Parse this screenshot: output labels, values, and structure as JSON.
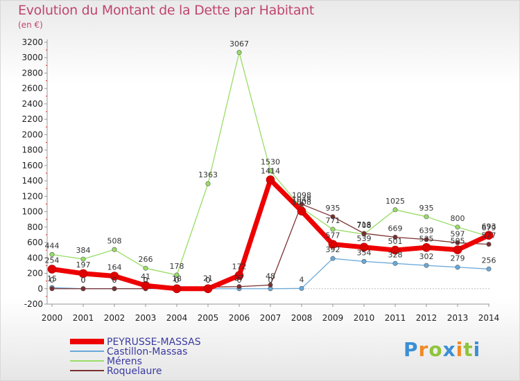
{
  "chart_data": {
    "type": "line",
    "title": "Evolution du Montant de la Dette par Habitant",
    "subtitle": "(en €)",
    "xlabel": "",
    "ylabel": "",
    "x": [
      "2000",
      "2001",
      "2002",
      "2003",
      "2004",
      "2005",
      "2006",
      "2007",
      "2008",
      "2009",
      "2010",
      "2011",
      "2012",
      "2013",
      "2014"
    ],
    "ylim": [
      -200,
      3200
    ],
    "yticks": [
      -200,
      0,
      200,
      400,
      600,
      800,
      1000,
      1200,
      1400,
      1600,
      1800,
      2000,
      2200,
      2400,
      2600,
      2800,
      3000,
      3200
    ],
    "grid": false,
    "legend": "bottom-left",
    "series": [
      {
        "name": "PEYRUSSE-MASSAS",
        "color": "#ee0000",
        "width": 7,
        "values": [
          254,
          197,
          164,
          41,
          0,
          0,
          172,
          1414,
          1008,
          577,
          539,
          501,
          535,
          505,
          693
        ],
        "labels": [
          "254",
          "197",
          "164",
          "41",
          "0",
          "0",
          "172",
          "1414",
          "1008",
          "577",
          "539",
          "501",
          "535",
          "505",
          "693"
        ]
      },
      {
        "name": "Castillon-Massas",
        "color": "#6aa9d9",
        "width": 1.3,
        "values": [
          15,
          0,
          0,
          0,
          0,
          0,
          0,
          0,
          4,
          392,
          354,
          328,
          302,
          279,
          256
        ],
        "labels": [
          "15",
          "0",
          "0",
          "0",
          "0",
          "0",
          "0",
          "0",
          "4",
          "392",
          "354",
          "328",
          "302",
          "279",
          "256"
        ]
      },
      {
        "name": "Mérens",
        "color": "#99dd66",
        "width": 1.3,
        "values": [
          444,
          384,
          508,
          266,
          178,
          1363,
          3067,
          1530,
          1048,
          771,
          708,
          1025,
          935,
          800,
          679
        ],
        "labels": [
          "444",
          "384",
          "508",
          "266",
          "178",
          "1363",
          "3067",
          "1530",
          "1048",
          "771",
          "708",
          "1025",
          "935",
          "800",
          "679"
        ]
      },
      {
        "name": "Roquelaure",
        "color": "#7b2f2f",
        "width": 1.3,
        "values": [
          0,
          0,
          0,
          0,
          18,
          21,
          27,
          48,
          1098,
          935,
          718,
          669,
          639,
          597,
          577
        ],
        "labels": [
          "0",
          "0",
          "0",
          "0",
          "18",
          "21",
          "27",
          "48",
          "1098",
          "935",
          "718",
          "669",
          "639",
          "597",
          "577"
        ]
      }
    ]
  },
  "logo_text": "Proxiti"
}
